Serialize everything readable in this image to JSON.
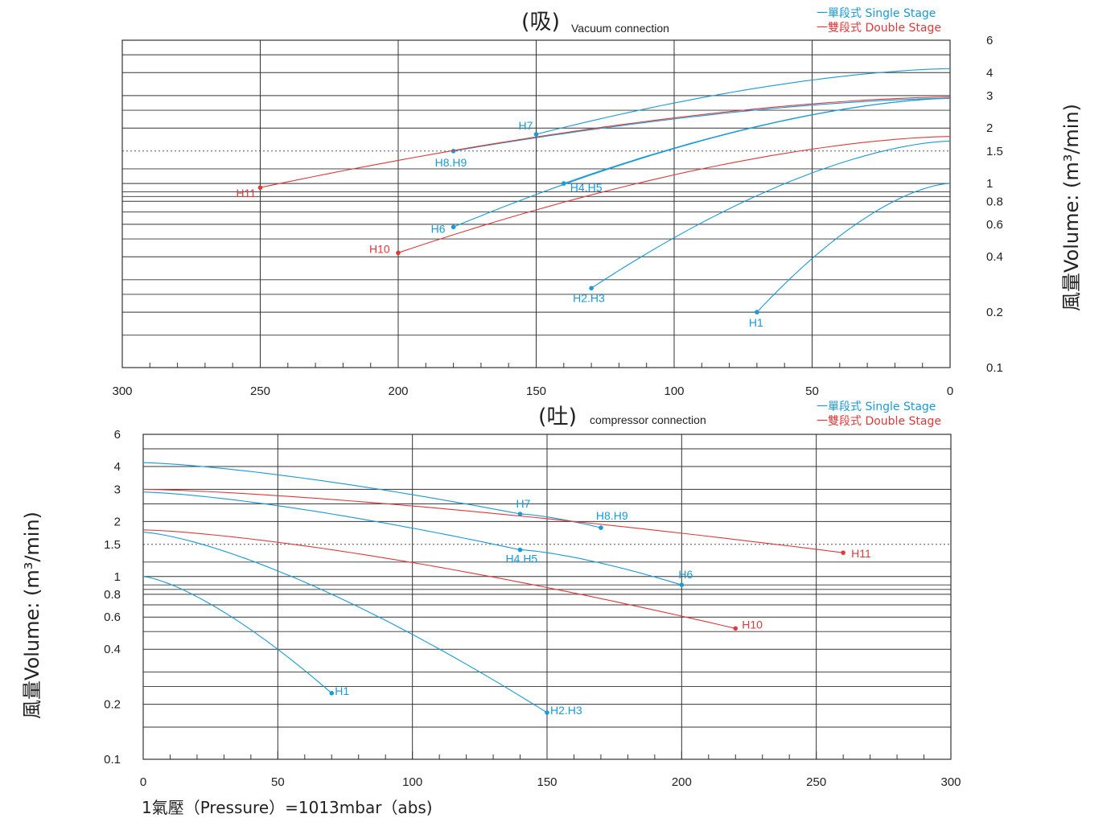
{
  "colors": {
    "single": "#1a9ad6",
    "double": "#e0393b",
    "grid": "#333333"
  },
  "legend": {
    "single": "一單段式 Single Stage",
    "double": "一雙段式 Double Stage"
  },
  "footer": "1氣壓（Pressure）=1013mbar（abs)",
  "chart_data": [
    {
      "type": "line",
      "title_cn": "(吸)",
      "title_en": "Vacuum connection",
      "ylabel": "風量Volume: (m³/min)",
      "yscale": "log",
      "ylim": [
        0.1,
        6
      ],
      "xlim": [
        300,
        0
      ],
      "x_ticks": [
        300,
        250,
        200,
        150,
        100,
        50,
        0
      ],
      "y_ticks": [
        "6",
        "4",
        "3",
        "2",
        "1.5",
        "1",
        "0.8",
        "0.6",
        "0.4",
        "0.2",
        "0.1"
      ],
      "y_tick_values": [
        6,
        4,
        3,
        2,
        1.5,
        1,
        0.8,
        0.6,
        0.4,
        0.2,
        0.1
      ],
      "series": [
        {
          "label": "H1",
          "stage": "single",
          "x": [
            0,
            70
          ],
          "y": [
            1.0,
            0.2
          ]
        },
        {
          "label": "H2.H3",
          "stage": "single",
          "x": [
            0,
            130
          ],
          "y": [
            1.7,
            0.27
          ]
        },
        {
          "label": "H4.H5",
          "stage": "single",
          "x": [
            0,
            140
          ],
          "y": [
            2.9,
            1.0
          ]
        },
        {
          "label": "H6",
          "stage": "single",
          "x": [
            0,
            180
          ],
          "y": [
            2.9,
            0.58
          ]
        },
        {
          "label": "H7",
          "stage": "single",
          "x": [
            0,
            150
          ],
          "y": [
            4.2,
            1.85
          ]
        },
        {
          "label": "H8.H9",
          "stage": "single",
          "x": [
            0,
            180
          ],
          "y": [
            2.9,
            1.5
          ]
        },
        {
          "label": "H10",
          "stage": "double",
          "x": [
            0,
            200
          ],
          "y": [
            1.8,
            0.42
          ]
        },
        {
          "label": "H11",
          "stage": "double",
          "x": [
            0,
            250
          ],
          "y": [
            2.95,
            0.95
          ]
        }
      ]
    },
    {
      "type": "line",
      "title_cn": "(吐)",
      "title_en": "compressor connection",
      "ylabel": "風量Volume: (m³/min)",
      "yscale": "log",
      "ylim": [
        0.1,
        6
      ],
      "xlim": [
        0,
        300
      ],
      "x_ticks": [
        0,
        50,
        100,
        150,
        200,
        250,
        300
      ],
      "y_ticks": [
        "6",
        "4",
        "3",
        "2",
        "1.5",
        "1",
        "0.8",
        "0.6",
        "0.4",
        "0.2",
        "0.1"
      ],
      "y_tick_values": [
        6,
        4,
        3,
        2,
        1.5,
        1,
        0.8,
        0.6,
        0.4,
        0.2,
        0.1
      ],
      "series": [
        {
          "label": "H1",
          "stage": "single",
          "x": [
            0,
            70
          ],
          "y": [
            1.0,
            0.23
          ]
        },
        {
          "label": "H2.H3",
          "stage": "single",
          "x": [
            0,
            150
          ],
          "y": [
            1.75,
            0.18
          ]
        },
        {
          "label": "H4.H5",
          "stage": "single",
          "x": [
            0,
            140
          ],
          "y": [
            2.9,
            1.4
          ]
        },
        {
          "label": "H6",
          "stage": "single",
          "x": [
            140,
            200
          ],
          "y": [
            1.4,
            0.9
          ]
        },
        {
          "label": "H7",
          "stage": "single",
          "x": [
            0,
            140
          ],
          "y": [
            4.2,
            2.2
          ]
        },
        {
          "label": "H8.H9",
          "stage": "single",
          "x": [
            140,
            170
          ],
          "y": [
            2.2,
            1.85
          ]
        },
        {
          "label": "H10",
          "stage": "double",
          "x": [
            0,
            220
          ],
          "y": [
            1.8,
            0.52
          ]
        },
        {
          "label": "H11",
          "stage": "double",
          "x": [
            0,
            260
          ],
          "y": [
            3.0,
            1.35
          ]
        }
      ]
    }
  ]
}
